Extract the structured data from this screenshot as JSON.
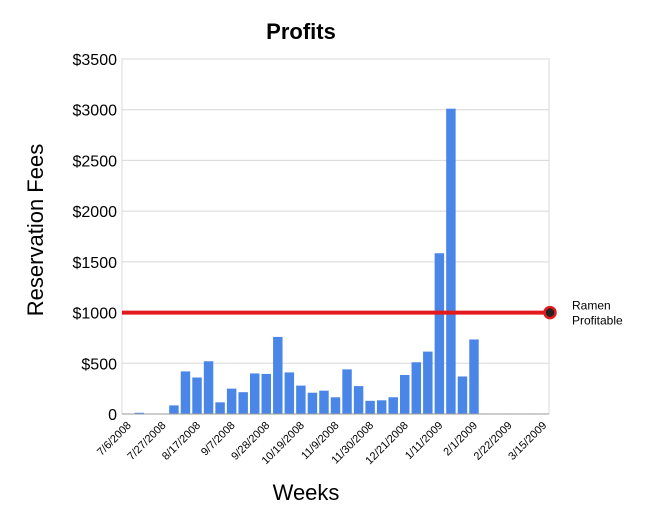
{
  "chart_data": {
    "type": "bar",
    "title": "Profits",
    "xlabel": "Weeks",
    "ylabel": "Reservation Fees",
    "ylim": [
      0,
      3500
    ],
    "y_ticks": [
      {
        "value": 0,
        "label": "0"
      },
      {
        "value": 500,
        "label": "$500"
      },
      {
        "value": 1000,
        "label": "$1000"
      },
      {
        "value": 1500,
        "label": "$1500"
      },
      {
        "value": 2000,
        "label": "$2000"
      },
      {
        "value": 2500,
        "label": "$2500"
      },
      {
        "value": 3000,
        "label": "$3000"
      },
      {
        "value": 3500,
        "label": "$3500"
      }
    ],
    "x_tick_labels": [
      "7/6/2008",
      "7/27/2008",
      "8/17/2008",
      "9/7/2008",
      "9/28/2008",
      "10/19/2008",
      "11/9/2008",
      "11/30/2008",
      "12/21/2008",
      "1/11/2009",
      "2/1/2009",
      "2/22/2009",
      "3/15/2009"
    ],
    "label_every": 3,
    "values": [
      5,
      12,
      3,
      5,
      85,
      420,
      360,
      520,
      115,
      250,
      215,
      400,
      395,
      760,
      410,
      280,
      210,
      230,
      165,
      440,
      275,
      130,
      135,
      165,
      385,
      510,
      615,
      1585,
      3010,
      370,
      735,
      5,
      5,
      5,
      5,
      5,
      5
    ],
    "bar_color": "#4a86e8",
    "grid": true,
    "threshold": {
      "value": 1000,
      "label": "Ramen Profitable",
      "color": "#e31a1c"
    }
  }
}
